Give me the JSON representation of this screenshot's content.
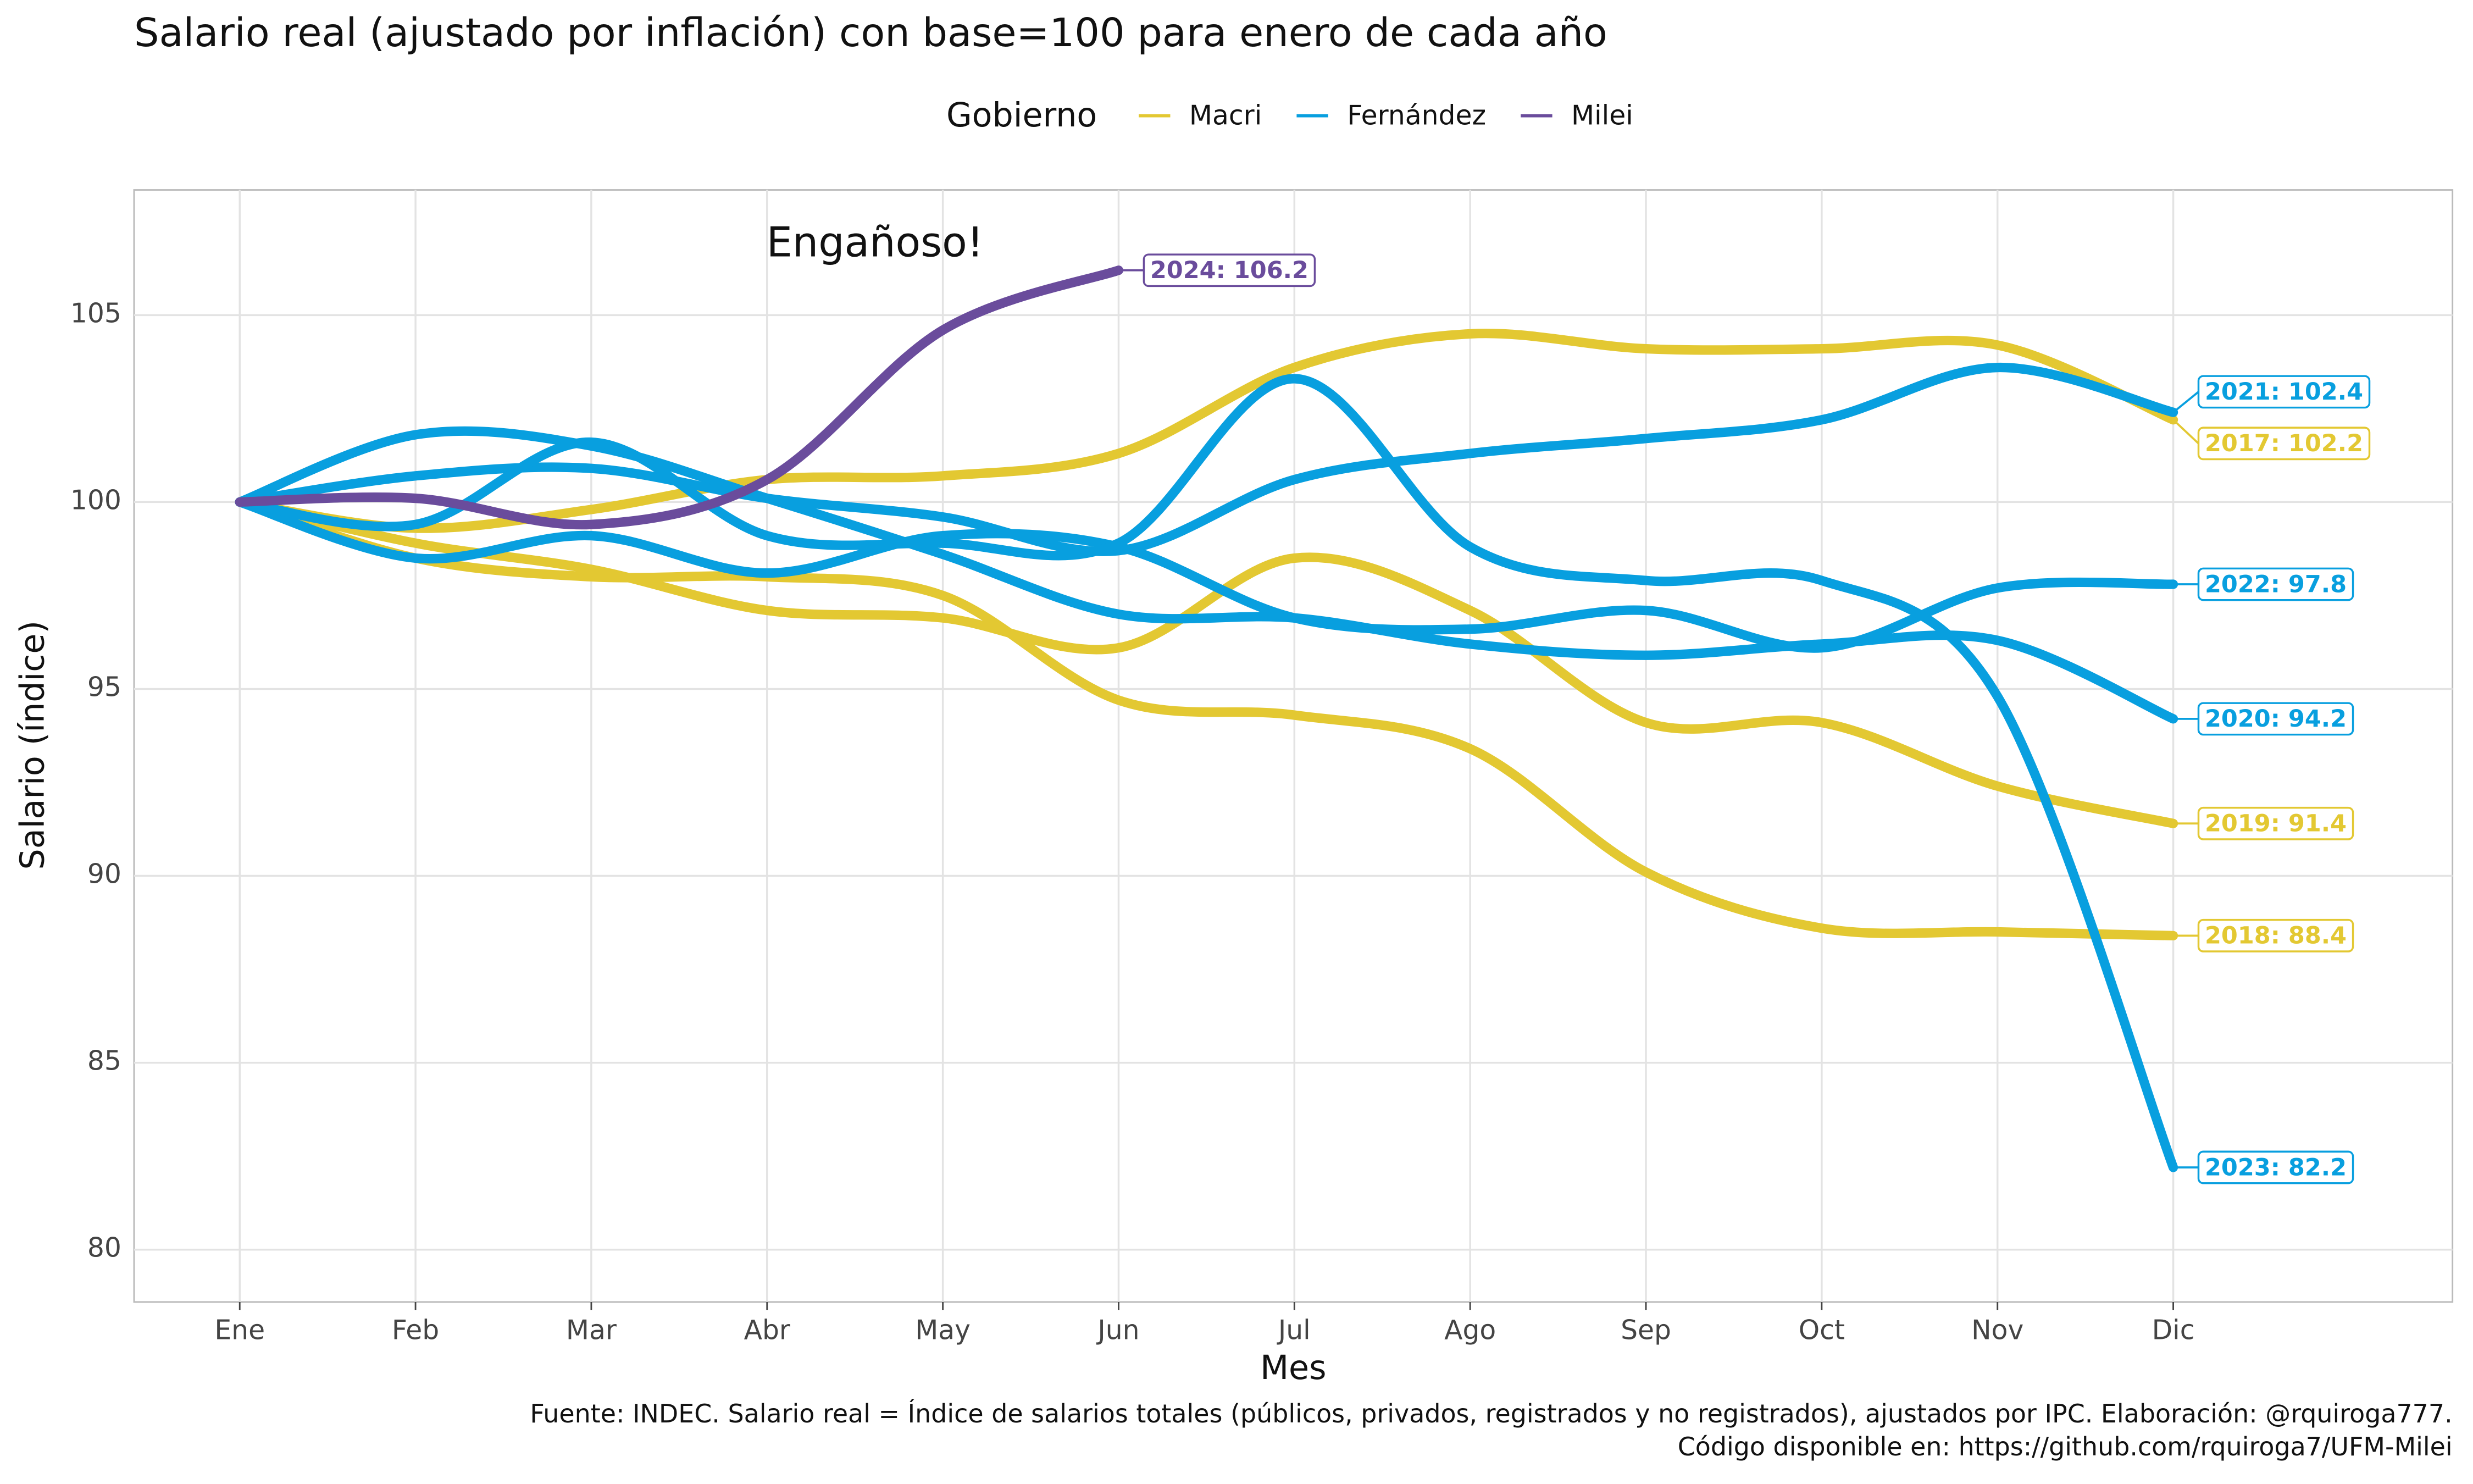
{
  "chart_data": {
    "type": "line",
    "title": "Salario real (ajustado por inflación) con base=100 para enero de cada año",
    "x_label": "Mes",
    "y_label": "Salario (índice)",
    "annotation": "Engañoso!",
    "caption": [
      "Fuente: INDEC. Salario real = Índice de salarios totales (públicos, privados, registrados y no registrados), ajustados por IPC. Elaboración: @rquiroga777.",
      "Código disponible en: https://github.com/rquiroga7/UFM-Milei"
    ],
    "legend": {
      "title": "Gobierno",
      "entries": [
        {
          "name": "Macri",
          "color": "#e3c832"
        },
        {
          "name": "Fernández",
          "color": "#089fdf"
        },
        {
          "name": "Milei",
          "color": "#6a4c9c"
        }
      ]
    },
    "categories": [
      "Ene",
      "Feb",
      "Mar",
      "Abr",
      "May",
      "Jun",
      "Jul",
      "Ago",
      "Sep",
      "Oct",
      "Nov",
      "Dic"
    ],
    "ylim": [
      78.6,
      108.35
    ],
    "yticks": [
      80,
      85,
      90,
      95,
      100,
      105
    ],
    "grid": true,
    "series": [
      {
        "end_label": "2017: 102.2",
        "color": "#e3c832",
        "values": [
          100,
          99.3,
          99.8,
          100.6,
          100.7,
          101.3,
          103.6,
          104.5,
          104.1,
          104.1,
          104.2,
          102.2
        ]
      },
      {
        "end_label": "2018: 88.4",
        "color": "#e3c832",
        "values": [
          100,
          98.5,
          98.0,
          98.0,
          97.5,
          94.7,
          94.3,
          93.4,
          90.1,
          88.6,
          88.5,
          88.4
        ]
      },
      {
        "end_label": "2019: 91.4",
        "color": "#e3c832",
        "values": [
          100,
          98.9,
          98.2,
          97.1,
          96.9,
          96.1,
          98.5,
          97.1,
          94.1,
          94.1,
          92.4,
          91.4
        ]
      },
      {
        "end_label": "2020: 94.2",
        "color": "#089fdf",
        "values": [
          100,
          101.8,
          101.5,
          100.1,
          98.6,
          97.0,
          96.9,
          96.2,
          95.9,
          96.2,
          96.3,
          94.2
        ]
      },
      {
        "end_label": "2021: 102.4",
        "color": "#089fdf",
        "values": [
          100,
          100.7,
          100.9,
          100.1,
          99.6,
          98.7,
          100.6,
          101.3,
          101.7,
          102.2,
          103.6,
          102.4
        ]
      },
      {
        "end_label": "2022: 97.8",
        "color": "#089fdf",
        "values": [
          100,
          98.5,
          99.1,
          98.1,
          99.1,
          98.8,
          96.9,
          96.6,
          97.1,
          96.1,
          97.7,
          97.8
        ]
      },
      {
        "end_label": "2023: 82.2",
        "color": "#089fdf",
        "values": [
          100,
          99.4,
          101.6,
          99.1,
          98.9,
          98.9,
          103.3,
          98.8,
          97.9,
          97.9,
          94.8,
          82.2
        ]
      },
      {
        "end_label": "2024: 106.2",
        "color": "#6a4c9c",
        "values": [
          100,
          100.1,
          99.4,
          100.6,
          104.6,
          106.2,
          null,
          null,
          null,
          null,
          null,
          null
        ]
      }
    ]
  }
}
